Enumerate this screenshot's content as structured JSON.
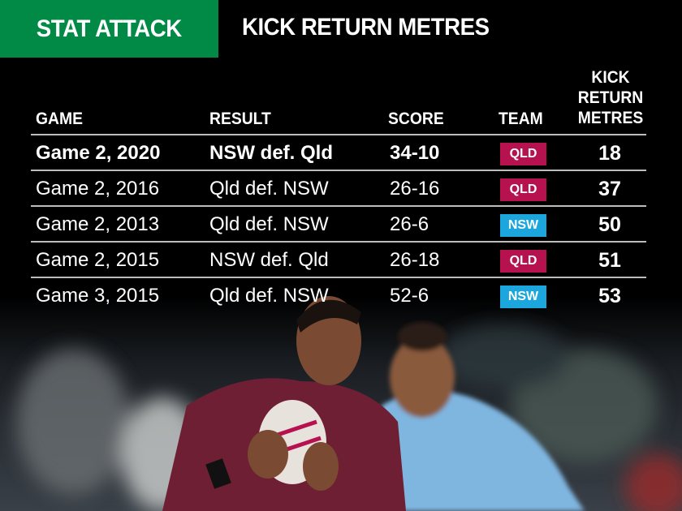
{
  "header": {
    "tag": "STAT ATTACK",
    "title": "KICK RETURN METRES",
    "tag_color": "#008a45"
  },
  "table": {
    "columns": {
      "game": "GAME",
      "result": "RESULT",
      "score": "SCORE",
      "team": "TEAM",
      "metres_1": "KICK",
      "metres_2": "RETURN",
      "metres_3": "METRES"
    },
    "rows": [
      {
        "game": "Game 2, 2020",
        "result": "NSW def. Qld",
        "score": "34-10",
        "team": "QLD",
        "metres": "18"
      },
      {
        "game": "Game 2, 2016",
        "result": "Qld def. NSW",
        "score": "26-16",
        "team": "QLD",
        "metres": "37"
      },
      {
        "game": "Game 2, 2013",
        "result": "Qld def. NSW",
        "score": "26-6",
        "team": "NSW",
        "metres": "50"
      },
      {
        "game": "Game 2, 2015",
        "result": "NSW def. Qld",
        "score": "26-18",
        "team": "QLD",
        "metres": "51"
      },
      {
        "game": "Game 3, 2015",
        "result": "Qld def. NSW",
        "score": "52-6",
        "team": "NSW",
        "metres": "53"
      }
    ]
  },
  "colors": {
    "QLD": "#b5124f",
    "NSW": "#1ba6dd"
  }
}
